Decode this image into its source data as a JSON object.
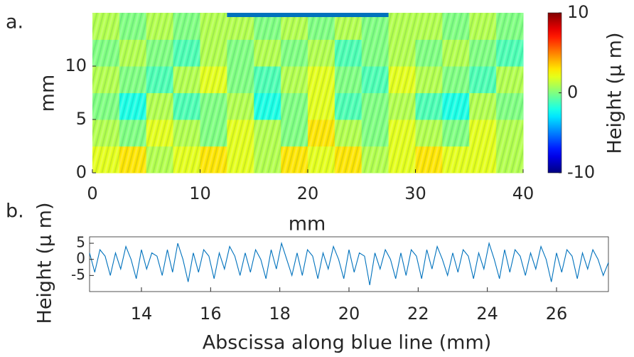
{
  "chart_data": [
    {
      "type": "heatmap",
      "panel_label": "a.",
      "x_label": "mm",
      "y_label": "mm",
      "x": [
        1.25,
        3.75,
        6.25,
        8.75,
        11.25,
        13.75,
        16.25,
        18.75,
        21.25,
        23.75,
        26.25,
        28.75,
        31.25,
        33.75,
        36.25,
        38.75
      ],
      "y": [
        1.25,
        3.75,
        6.25,
        8.75,
        11.25,
        13.75
      ],
      "values": [
        [
          2,
          3,
          1,
          2,
          3,
          2,
          1,
          3,
          2,
          3,
          1,
          2,
          3,
          2,
          2,
          1
        ],
        [
          1,
          0,
          2,
          1,
          0,
          2,
          1,
          0,
          3,
          1,
          0,
          2,
          1,
          0,
          2,
          1
        ],
        [
          0,
          -2,
          1,
          -1,
          0,
          1,
          -2,
          0,
          2,
          -1,
          0,
          1,
          -1,
          -2,
          1,
          0
        ],
        [
          1,
          0,
          -1,
          1,
          2,
          0,
          -1,
          1,
          2,
          0,
          -1,
          2,
          1,
          0,
          -1,
          1
        ],
        [
          0,
          1,
          0,
          -1,
          1,
          0,
          1,
          0,
          1,
          -1,
          0,
          1,
          0,
          1,
          0,
          -1
        ],
        [
          1,
          0,
          1,
          0,
          1,
          1,
          0,
          1,
          0,
          1,
          0,
          1,
          1,
          0,
          1,
          0
        ]
      ],
      "xlim": [
        0,
        40
      ],
      "xticks": [
        0,
        10,
        20,
        30,
        40
      ],
      "ylim": [
        0,
        15
      ],
      "yticks": [
        0,
        5,
        10
      ],
      "colormap": "jet",
      "clim": [
        -10,
        10
      ],
      "cticks": [
        -10,
        0,
        10
      ],
      "colorbar_label": "Height (μ m)",
      "highlight": {
        "x": [
          12.5,
          27.5
        ],
        "y": [
          15,
          15
        ],
        "color": "#0072bd"
      }
    },
    {
      "type": "line",
      "panel_label": "b.",
      "x_label": "Abscissa along blue line (mm)",
      "y_label": "Height (μ m)",
      "x": [
        12.5,
        12.65,
        12.8,
        12.95,
        13.1,
        13.25,
        13.4,
        13.55,
        13.7,
        13.85,
        14,
        14.15,
        14.3,
        14.45,
        14.6,
        14.75,
        14.9,
        15.05,
        15.2,
        15.35,
        15.5,
        15.65,
        15.8,
        15.95,
        16.1,
        16.25,
        16.4,
        16.55,
        16.7,
        16.85,
        17,
        17.15,
        17.3,
        17.45,
        17.6,
        17.75,
        17.9,
        18.05,
        18.2,
        18.35,
        18.5,
        18.65,
        18.8,
        18.95,
        19.1,
        19.25,
        19.4,
        19.55,
        19.7,
        19.85,
        20,
        20.15,
        20.3,
        20.45,
        20.6,
        20.75,
        20.9,
        21.05,
        21.2,
        21.35,
        21.5,
        21.65,
        21.8,
        21.95,
        22.1,
        22.25,
        22.4,
        22.55,
        22.7,
        22.85,
        23,
        23.15,
        23.3,
        23.45,
        23.6,
        23.75,
        23.9,
        24.05,
        24.2,
        24.35,
        24.5,
        24.65,
        24.8,
        24.95,
        25.1,
        25.25,
        25.4,
        25.55,
        25.7,
        25.85,
        26,
        26.15,
        26.3,
        26.45,
        26.6,
        26.75,
        26.9,
        27.05,
        27.2,
        27.35,
        27.5
      ],
      "series": [
        {
          "color": "#0072bd",
          "values": [
            2,
            -4,
            3,
            1,
            -5,
            2,
            -3,
            4,
            0,
            -6,
            3,
            -3,
            2,
            1,
            -5,
            3,
            -4,
            5,
            0,
            -7,
            2,
            -4,
            3,
            1,
            -6,
            2,
            -3,
            4,
            1,
            -5,
            2,
            -4,
            3,
            0,
            -6,
            3,
            -3,
            5,
            0,
            -5,
            2,
            -5,
            3,
            1,
            -6,
            2,
            -3,
            4,
            0,
            -6,
            3,
            -4,
            2,
            1,
            -8,
            2,
            -3,
            3,
            0,
            -6,
            2,
            -5,
            3,
            1,
            -6,
            3,
            -3,
            4,
            0,
            -5,
            2,
            -4,
            3,
            1,
            -6,
            2,
            -3,
            5,
            0,
            -6,
            3,
            -4,
            3,
            1,
            -5,
            2,
            -3,
            4,
            0,
            -7,
            2,
            -4,
            3,
            1,
            -6,
            2,
            -3,
            3,
            0,
            -5,
            -1
          ]
        }
      ],
      "xlim": [
        12.5,
        27.5
      ],
      "xticks": [
        14,
        16,
        18,
        20,
        22,
        24,
        26
      ],
      "ylim": [
        -10,
        7
      ],
      "yticks": [
        -5,
        0,
        5
      ]
    }
  ]
}
